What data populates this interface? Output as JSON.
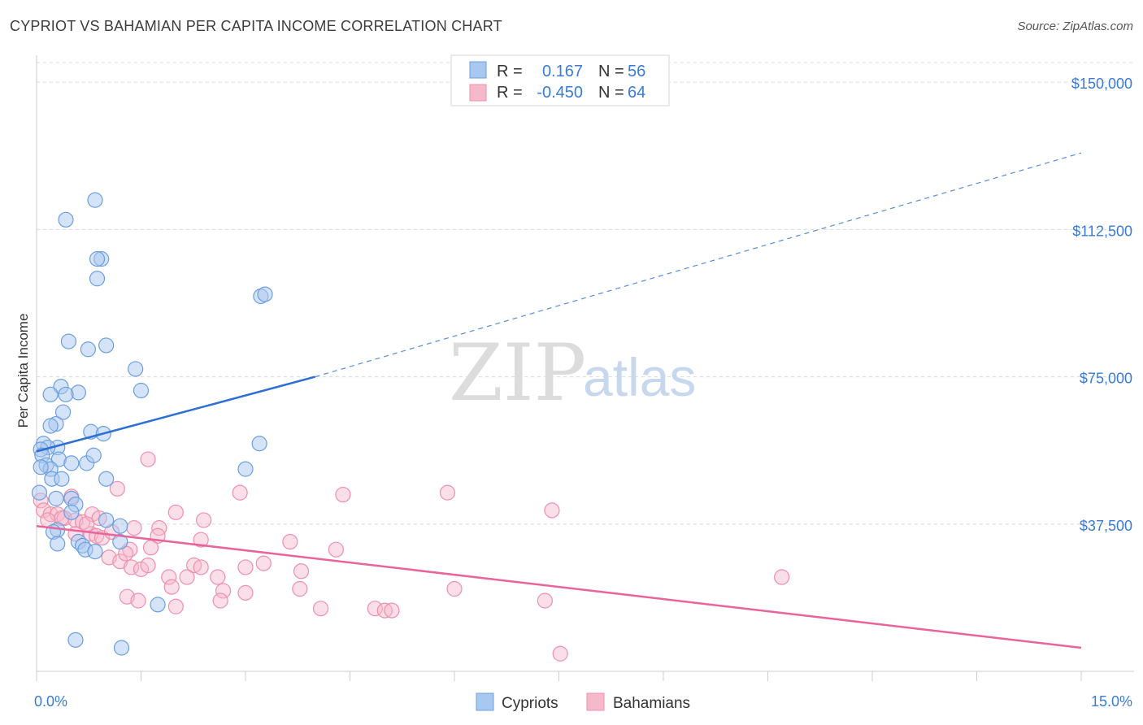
{
  "header": {
    "title": "CYPRIOT VS BAHAMIAN PER CAPITA INCOME CORRELATION CHART",
    "source": "Source: ZipAtlas.com"
  },
  "watermark": {
    "part1": "ZIP",
    "part2": "atlas"
  },
  "legend": {
    "rows": [
      {
        "r_label": "R =",
        "r_value": "0.167",
        "n_label": "N =",
        "n_value": "56"
      },
      {
        "r_label": "R =",
        "r_value": "-0.450",
        "n_label": "N =",
        "n_value": "64"
      }
    ]
  },
  "bottom_legend": [
    "Cypriots",
    "Bahamians"
  ],
  "colors": {
    "blue_fill": "#a9c8f0",
    "blue_stroke": "#6a9fe0",
    "blue_line": "#2d6fd4",
    "pink_fill": "#f6b8cb",
    "pink_stroke": "#ee8fab",
    "pink_line": "#e8649a",
    "tick": "#3a7bd5",
    "grid": "#d9d9d9"
  },
  "chart_data": {
    "type": "scatter",
    "title": "CYPRIOT VS BAHAMIAN PER CAPITA INCOME CORRELATION CHART",
    "xlabel": "",
    "ylabel": "Per Capita Income",
    "xlim": [
      0,
      15
    ],
    "ylim": [
      0,
      155000
    ],
    "x_tick_labels": [
      "0.0%",
      "15.0%"
    ],
    "y_ticks": [
      37500,
      75000,
      112500,
      150000
    ],
    "y_tick_labels": [
      "$37,500",
      "$75,000",
      "$112,500",
      "$150,000"
    ],
    "grid": true,
    "legend_position": "top-center",
    "series": [
      {
        "name": "Cypriots",
        "r": 0.167,
        "n": 56,
        "trend": {
          "x": [
            0,
            4
          ],
          "y": [
            56000,
            75000
          ],
          "dashed_to": {
            "x": 15,
            "y": 132000
          }
        },
        "points": [
          [
            0.42,
            115000
          ],
          [
            0.84,
            120000
          ],
          [
            0.87,
            100000
          ],
          [
            0.93,
            105000
          ],
          [
            0.87,
            105000
          ],
          [
            3.22,
            95500
          ],
          [
            3.28,
            96000
          ],
          [
            0.46,
            84000
          ],
          [
            0.74,
            82000
          ],
          [
            1.0,
            83000
          ],
          [
            1.42,
            77000
          ],
          [
            1.5,
            71500
          ],
          [
            0.35,
            72500
          ],
          [
            0.6,
            71000
          ],
          [
            0.42,
            70500
          ],
          [
            0.2,
            70500
          ],
          [
            0.38,
            66000
          ],
          [
            0.28,
            63000
          ],
          [
            0.2,
            62500
          ],
          [
            0.78,
            61000
          ],
          [
            0.96,
            60500
          ],
          [
            3.2,
            58000
          ],
          [
            0.1,
            58000
          ],
          [
            0.3,
            57000
          ],
          [
            0.16,
            57000
          ],
          [
            0.06,
            56500
          ],
          [
            0.08,
            55000
          ],
          [
            0.32,
            54000
          ],
          [
            0.5,
            53000
          ],
          [
            0.72,
            53000
          ],
          [
            0.82,
            55000
          ],
          [
            0.14,
            52500
          ],
          [
            0.2,
            51500
          ],
          [
            0.06,
            52000
          ],
          [
            3.0,
            51500
          ],
          [
            1.0,
            49000
          ],
          [
            0.22,
            49000
          ],
          [
            0.36,
            49000
          ],
          [
            0.04,
            45500
          ],
          [
            0.28,
            44000
          ],
          [
            0.5,
            44000
          ],
          [
            0.56,
            42500
          ],
          [
            0.5,
            40500
          ],
          [
            1.0,
            38500
          ],
          [
            1.2,
            37000
          ],
          [
            0.3,
            36000
          ],
          [
            0.24,
            35500
          ],
          [
            0.6,
            33000
          ],
          [
            1.2,
            33000
          ],
          [
            0.66,
            32000
          ],
          [
            0.7,
            31000
          ],
          [
            0.84,
            30500
          ],
          [
            1.74,
            17000
          ],
          [
            0.56,
            8000
          ],
          [
            1.22,
            6000
          ],
          [
            0.3,
            32500
          ]
        ]
      },
      {
        "name": "Bahamians",
        "r": -0.45,
        "n": 64,
        "trend": {
          "x": [
            0,
            15
          ],
          "y": [
            37000,
            6000
          ]
        },
        "points": [
          [
            0.06,
            43500
          ],
          [
            0.1,
            41000
          ],
          [
            0.2,
            40000
          ],
          [
            0.3,
            40000
          ],
          [
            0.4,
            39000
          ],
          [
            0.56,
            38500
          ],
          [
            0.66,
            38000
          ],
          [
            0.8,
            40000
          ],
          [
            0.9,
            39000
          ],
          [
            0.5,
            44500
          ],
          [
            1.16,
            46500
          ],
          [
            1.6,
            54000
          ],
          [
            2.92,
            45500
          ],
          [
            4.4,
            45000
          ],
          [
            5.9,
            45500
          ],
          [
            7.4,
            41000
          ],
          [
            2.0,
            40500
          ],
          [
            2.4,
            38500
          ],
          [
            1.4,
            36500
          ],
          [
            1.76,
            36500
          ],
          [
            0.56,
            35000
          ],
          [
            0.78,
            35000
          ],
          [
            0.86,
            34500
          ],
          [
            0.94,
            34000
          ],
          [
            1.74,
            34500
          ],
          [
            2.36,
            33500
          ],
          [
            3.64,
            33000
          ],
          [
            4.3,
            31000
          ],
          [
            1.34,
            31000
          ],
          [
            1.64,
            31500
          ],
          [
            1.04,
            29000
          ],
          [
            1.2,
            28000
          ],
          [
            1.36,
            26500
          ],
          [
            1.5,
            26000
          ],
          [
            1.6,
            27000
          ],
          [
            2.26,
            27000
          ],
          [
            2.36,
            26500
          ],
          [
            3.0,
            26500
          ],
          [
            3.26,
            27500
          ],
          [
            3.8,
            25500
          ],
          [
            1.9,
            24000
          ],
          [
            2.16,
            24000
          ],
          [
            2.6,
            24000
          ],
          [
            1.94,
            21500
          ],
          [
            2.68,
            20500
          ],
          [
            3.0,
            20000
          ],
          [
            3.78,
            21000
          ],
          [
            6.0,
            21000
          ],
          [
            1.3,
            19000
          ],
          [
            1.46,
            18000
          ],
          [
            2.64,
            18000
          ],
          [
            4.08,
            16000
          ],
          [
            4.86,
            16000
          ],
          [
            5.0,
            15500
          ],
          [
            7.3,
            18000
          ],
          [
            10.7,
            24000
          ],
          [
            7.52,
            4500
          ],
          [
            5.1,
            15500
          ],
          [
            2.0,
            16500
          ],
          [
            0.36,
            39000
          ],
          [
            0.16,
            38500
          ],
          [
            0.72,
            37500
          ],
          [
            1.08,
            35500
          ],
          [
            1.28,
            30000
          ]
        ]
      }
    ]
  }
}
